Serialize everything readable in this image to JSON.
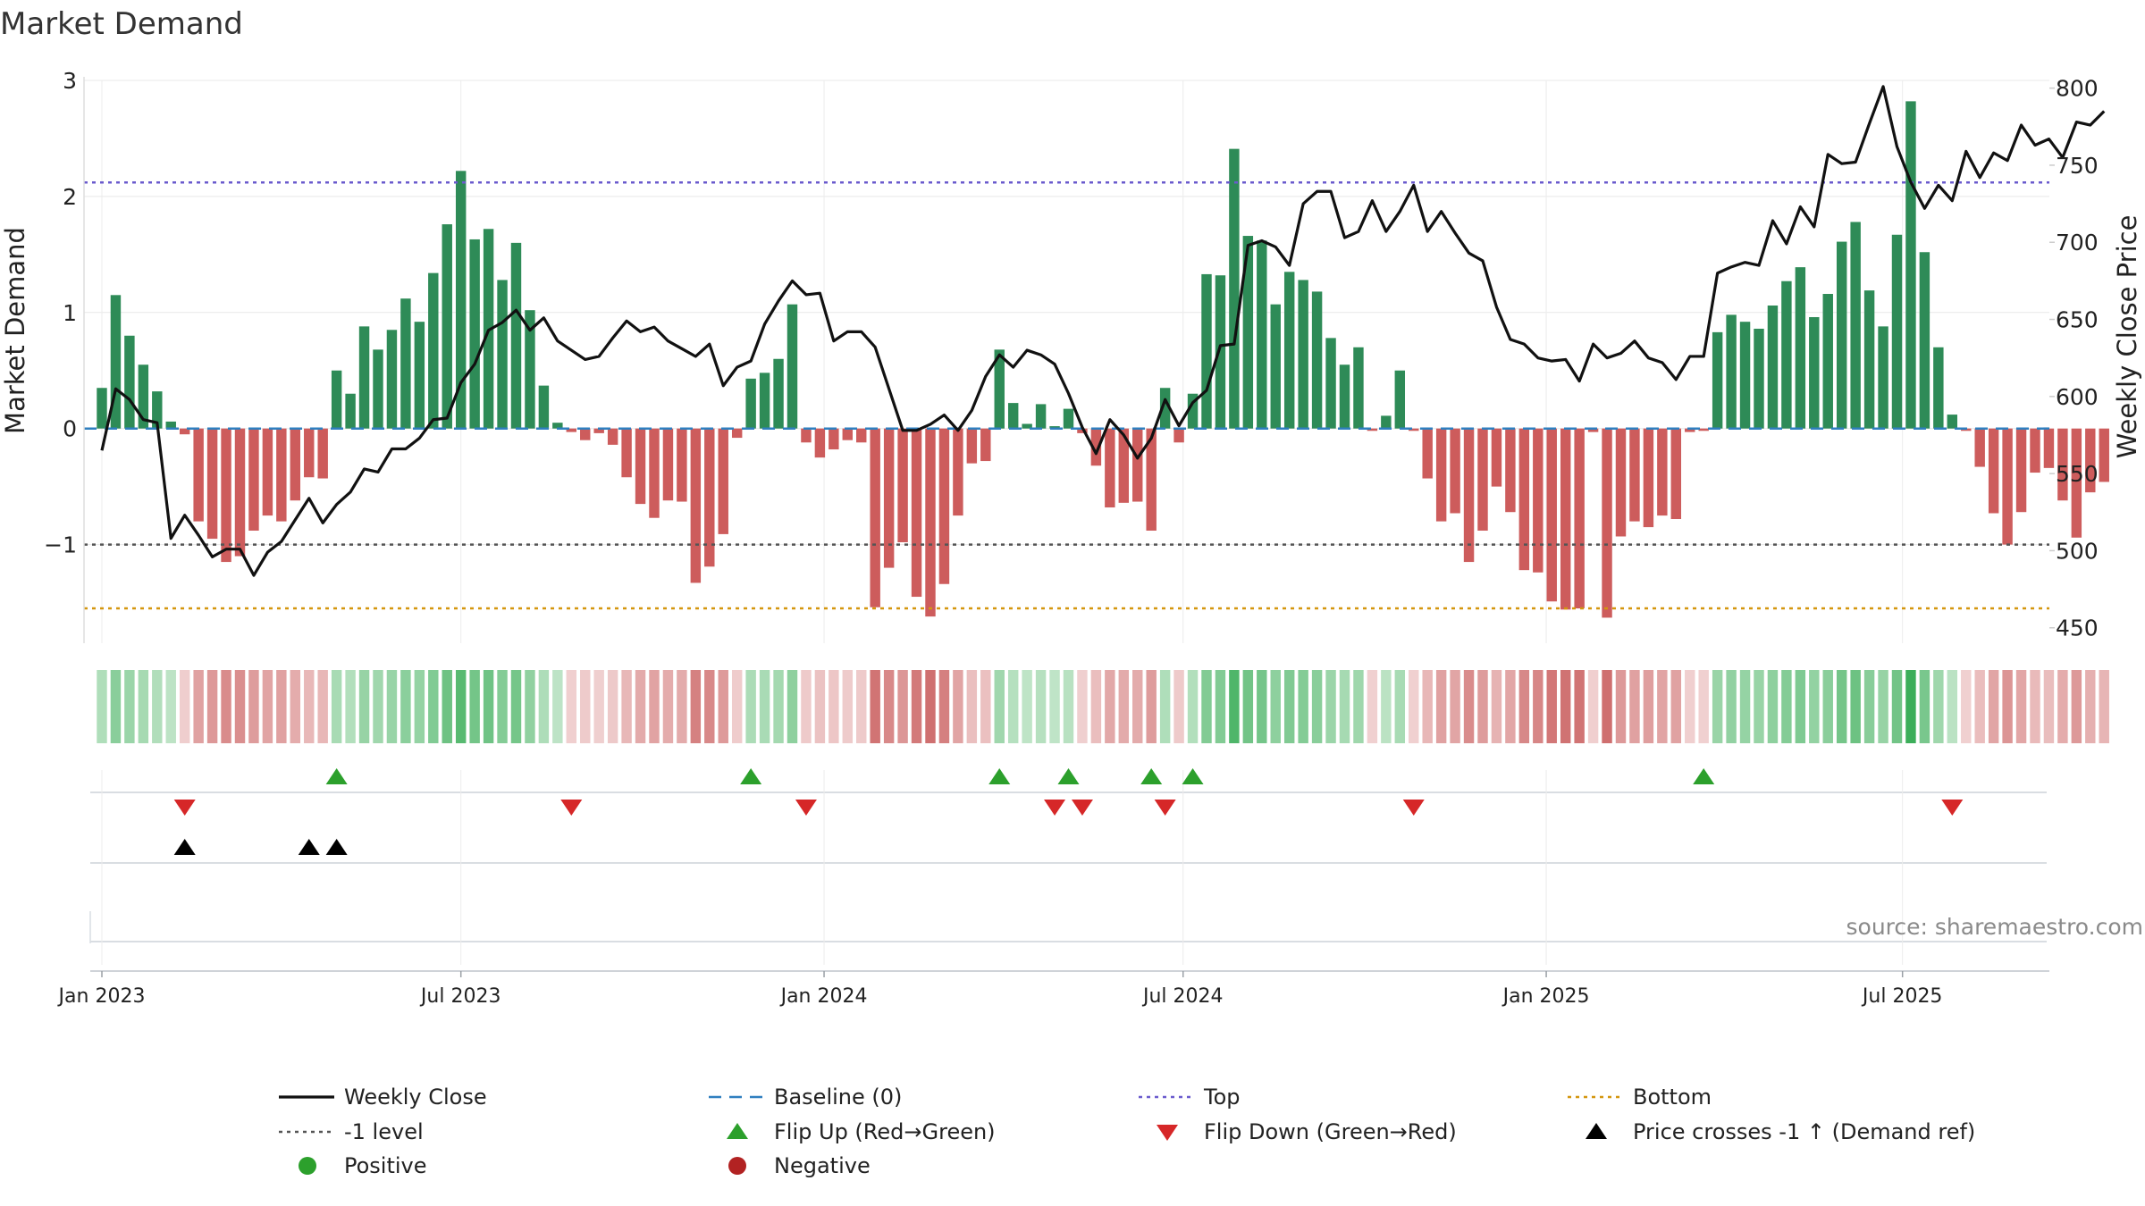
{
  "title": "Market Demand",
  "source": "source: sharemaestro.com",
  "colors": {
    "positive_bar": "#2e8b57",
    "negative_bar": "#cd5c5c",
    "close_line": "#111111",
    "top_line": "#6a5acd",
    "bottom_line": "#d4960e",
    "minus1_line": "#555555",
    "baseline": "#2f7fbf",
    "flip_up": "#2ca02c",
    "flip_down": "#d62728",
    "cross_marker": "#000000",
    "positive_dot": "#2ca02c",
    "negative_dot": "#b22222"
  },
  "chart_data": {
    "type": "bar",
    "start_date": "2023-01-06",
    "frequency": "weekly",
    "ylabel_left": "Market Demand",
    "ylabel_right": "Weekly Close Price",
    "ylim_left": [
      -1.85,
      3.0
    ],
    "ylim_right": [
      440,
      805
    ],
    "left_ticks": [
      3,
      2,
      1,
      0,
      -1
    ],
    "left_tick_labels": [
      "3",
      "2",
      "1",
      "0",
      "−1"
    ],
    "right_ticks": [
      800,
      750,
      700,
      650,
      600,
      550,
      500,
      450
    ],
    "x_ticks": [
      {
        "label": "Jan 2023",
        "week": 0
      },
      {
        "label": "Jul 2023",
        "week": 26
      },
      {
        "label": "Jan 2024",
        "week": 52.3
      },
      {
        "label": "Jul 2024",
        "week": 78.3
      },
      {
        "label": "Jan 2025",
        "week": 104.6
      },
      {
        "label": "Jul 2025",
        "week": 130.4
      }
    ],
    "reference_lines": {
      "top": 2.12,
      "bottom": -1.55,
      "minus_one": -1.0,
      "baseline": 0
    },
    "demand": [
      0.35,
      1.15,
      0.8,
      0.55,
      0.32,
      0.06,
      -0.05,
      -0.8,
      -0.95,
      -1.15,
      -1.1,
      -0.88,
      -0.75,
      -0.8,
      -0.62,
      -0.42,
      -0.43,
      0.5,
      0.3,
      0.88,
      0.68,
      0.85,
      1.12,
      0.92,
      1.34,
      1.76,
      2.22,
      1.63,
      1.72,
      1.28,
      1.6,
      1.02,
      0.37,
      0.05,
      -0.03,
      -0.1,
      -0.04,
      -0.14,
      -0.42,
      -0.65,
      -0.77,
      -0.62,
      -0.63,
      -1.33,
      -1.19,
      -0.91,
      -0.08,
      0.43,
      0.48,
      0.6,
      1.07,
      -0.12,
      -0.25,
      -0.18,
      -0.1,
      -0.12,
      -1.54,
      -1.2,
      -0.98,
      -1.45,
      -1.62,
      -1.34,
      -0.75,
      -0.3,
      -0.28,
      0.68,
      0.22,
      0.04,
      0.21,
      0.02,
      0.17,
      -0.04,
      -0.32,
      -0.68,
      -0.64,
      -0.63,
      -0.88,
      0.35,
      -0.12,
      0.3,
      1.33,
      1.32,
      2.41,
      1.66,
      1.62,
      1.07,
      1.35,
      1.28,
      1.18,
      0.78,
      0.55,
      0.7,
      -0.02,
      0.11,
      0.5,
      -0.02,
      -0.43,
      -0.8,
      -0.73,
      -1.15,
      -0.88,
      -0.5,
      -0.72,
      -1.22,
      -1.24,
      -1.49,
      -1.56,
      -1.55,
      -0.03,
      -1.63,
      -0.93,
      -0.8,
      -0.85,
      -0.75,
      -0.78,
      -0.03,
      -0.02,
      0.83,
      0.98,
      0.92,
      0.86,
      1.06,
      1.27,
      1.39,
      0.96,
      1.16,
      1.61,
      1.78,
      1.19,
      0.88,
      1.67,
      2.82,
      1.52,
      0.7,
      0.12,
      -0.02,
      -0.33,
      -0.73,
      -1.0,
      -0.72,
      -0.38,
      -0.34,
      -0.62,
      -0.94,
      -0.55,
      -0.46
    ],
    "weekly_close": [
      565,
      605,
      598,
      585,
      583,
      508,
      523,
      510,
      496,
      501,
      501,
      484,
      499,
      506,
      520,
      534,
      518,
      530,
      538,
      553,
      551,
      566,
      566,
      573,
      585,
      586,
      609,
      621,
      643,
      648,
      656,
      643,
      651,
      636,
      630,
      624,
      626,
      638,
      649,
      642,
      645,
      636,
      631,
      626,
      634,
      607,
      619,
      623,
      647,
      662,
      675,
      666,
      667,
      636,
      642,
      642,
      632,
      605,
      578,
      578,
      582,
      588,
      578,
      591,
      613,
      627,
      619,
      630,
      627,
      621,
      602,
      580,
      563,
      585,
      575,
      560,
      573,
      598,
      581,
      596,
      604,
      633,
      634,
      698,
      701,
      697,
      685,
      725,
      733,
      733,
      703,
      707,
      727,
      707,
      720,
      737,
      707,
      720,
      706,
      693,
      688,
      658,
      637,
      634,
      625,
      623,
      624,
      610,
      634,
      625,
      628,
      636,
      625,
      622,
      611,
      626,
      626,
      680,
      684,
      687,
      685,
      714,
      699,
      723,
      710,
      757,
      751,
      752,
      777,
      801,
      762,
      739,
      722,
      737,
      727,
      759,
      742,
      758,
      753,
      776,
      763,
      767,
      755,
      778,
      776,
      785
    ],
    "flip_up_weeks": [
      17,
      47,
      65,
      70,
      76,
      79,
      116
    ],
    "flip_down_weeks": [
      6,
      34,
      51,
      69,
      71,
      77,
      95,
      134
    ],
    "price_cross_weeks": [
      6,
      15,
      17
    ],
    "legend": [
      {
        "label": "Weekly Close",
        "marker": "line"
      },
      {
        "label": "Baseline (0)",
        "marker": "dash"
      },
      {
        "label": "Top",
        "marker": "dotted-top"
      },
      {
        "label": "Bottom",
        "marker": "dotted-bottom"
      },
      {
        "label": "-1 level",
        "marker": "dotted-minus1"
      },
      {
        "label": "Flip Up (Red→Green)",
        "marker": "tri-up"
      },
      {
        "label": "Flip Down (Green→Red)",
        "marker": "tri-down"
      },
      {
        "label": "Price crosses -1 ↑ (Demand ref)",
        "marker": "tri-black"
      },
      {
        "label": "Positive",
        "marker": "dot-positive"
      },
      {
        "label": "Negative",
        "marker": "dot-negative"
      }
    ]
  }
}
